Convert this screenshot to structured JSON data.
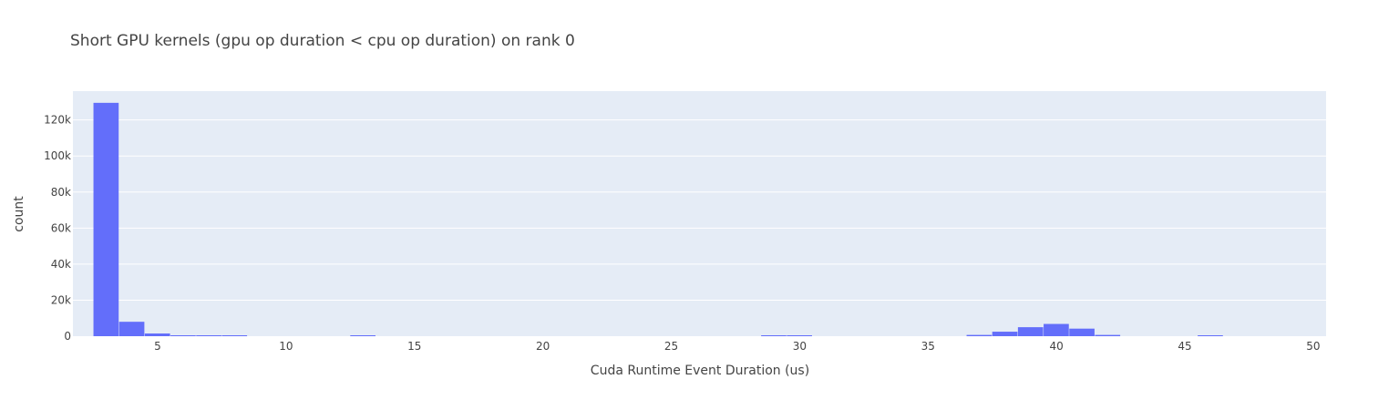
{
  "chart_data": {
    "type": "bar",
    "title": "Short GPU kernels (gpu op duration < cpu op duration) on rank 0",
    "xlabel": "Cuda Runtime Event Duration (us)",
    "ylabel": "count",
    "xlim": [
      1.7,
      50.5
    ],
    "ylim": [
      0,
      136000
    ],
    "x_ticks": [
      5,
      10,
      15,
      20,
      25,
      30,
      35,
      40,
      45,
      50
    ],
    "y_ticks": [
      0,
      20000,
      40000,
      60000,
      80000,
      100000,
      120000
    ],
    "y_tick_labels": [
      "0",
      "20k",
      "40k",
      "60k",
      "80k",
      "100k",
      "120k"
    ],
    "bin_width": 1,
    "grid": true,
    "series": [
      {
        "bins": [
          {
            "x0": 2.5,
            "x1": 3.5,
            "count": 129500
          },
          {
            "x0": 3.5,
            "x1": 4.5,
            "count": 8000
          },
          {
            "x0": 4.5,
            "x1": 5.5,
            "count": 1500
          },
          {
            "x0": 5.5,
            "x1": 6.5,
            "count": 400
          },
          {
            "x0": 6.5,
            "x1": 7.5,
            "count": 300
          },
          {
            "x0": 7.5,
            "x1": 8.5,
            "count": 250
          },
          {
            "x0": 12.5,
            "x1": 13.5,
            "count": 300
          },
          {
            "x0": 28.5,
            "x1": 29.5,
            "count": 200
          },
          {
            "x0": 29.5,
            "x1": 30.5,
            "count": 200
          },
          {
            "x0": 36.5,
            "x1": 37.5,
            "count": 700
          },
          {
            "x0": 37.5,
            "x1": 38.5,
            "count": 2500
          },
          {
            "x0": 38.5,
            "x1": 39.5,
            "count": 5000
          },
          {
            "x0": 39.5,
            "x1": 40.5,
            "count": 6800
          },
          {
            "x0": 40.5,
            "x1": 41.5,
            "count": 4200
          },
          {
            "x0": 41.5,
            "x1": 42.5,
            "count": 700
          },
          {
            "x0": 45.5,
            "x1": 46.5,
            "count": 300
          }
        ]
      }
    ],
    "colors": {
      "bar": "#636efa",
      "plot_bg": "#e5ecf6",
      "grid": "#ffffff",
      "text": "#444444"
    }
  }
}
